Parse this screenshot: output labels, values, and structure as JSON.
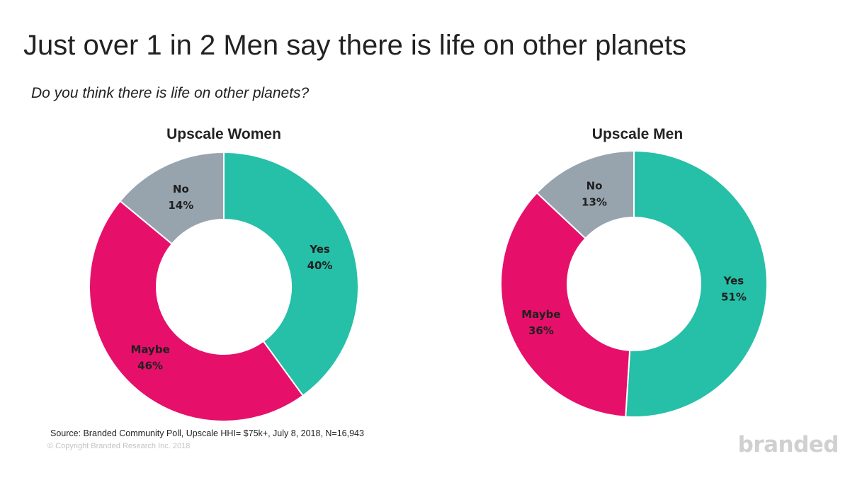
{
  "title": "Just over 1 in 2 Men say there is life on other planets",
  "subtitle": "Do you think there is life on other planets?",
  "chart_data": [
    {
      "type": "pie",
      "title": "Upscale Women",
      "slices": [
        {
          "label": "Yes",
          "value": 40,
          "display": "40%",
          "color": "#26bfa8"
        },
        {
          "label": "Maybe",
          "value": 46,
          "display": "46%",
          "color": "#e6106a"
        },
        {
          "label": "No",
          "value": 14,
          "display": "14%",
          "color": "#97a4ae"
        }
      ]
    },
    {
      "type": "pie",
      "title": "Upscale Men",
      "slices": [
        {
          "label": "Yes",
          "value": 51,
          "display": "51%",
          "color": "#26bfa8"
        },
        {
          "label": "Maybe",
          "value": 36,
          "display": "36%",
          "color": "#e6106a"
        },
        {
          "label": "No",
          "value": 13,
          "display": "13%",
          "color": "#97a4ae"
        }
      ]
    }
  ],
  "source": "Source: Branded Community Poll, Upscale HHI= $75k+, July 8, 2018, N=16,943",
  "copyright": "© Copyright Branded Research Inc. 2018",
  "logo": "branded"
}
